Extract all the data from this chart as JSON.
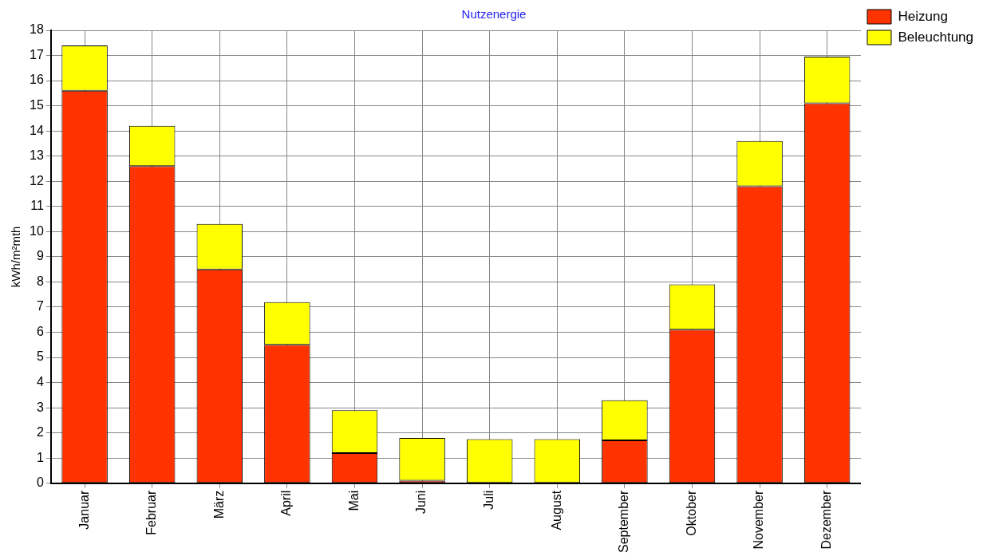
{
  "chart_data": {
    "type": "bar",
    "title": "Nutzenergie",
    "ylabel": "kWh/m²mth",
    "stacked": true,
    "categories": [
      "Januar",
      "Februar",
      "März",
      "April",
      "Mai",
      "Juni",
      "Juli",
      "August",
      "September",
      "Oktober",
      "November",
      "Dezember"
    ],
    "series": [
      {
        "name": "Heizung",
        "color": "#ff3300",
        "values": [
          15.6,
          12.6,
          8.5,
          5.5,
          1.2,
          0.1,
          0,
          0,
          1.7,
          6.1,
          11.8,
          15.1
        ]
      },
      {
        "name": "Beleuchtung",
        "color": "#ffff00",
        "values": [
          1.8,
          1.6,
          1.8,
          1.7,
          1.7,
          1.7,
          1.75,
          1.75,
          1.6,
          1.8,
          1.8,
          1.85
        ]
      }
    ],
    "ylim": [
      0,
      18
    ],
    "yticks": [
      0,
      1,
      2,
      3,
      4,
      5,
      6,
      7,
      8,
      9,
      10,
      11,
      12,
      13,
      14,
      15,
      16,
      17,
      18
    ],
    "grid": true,
    "legend": "top right"
  }
}
